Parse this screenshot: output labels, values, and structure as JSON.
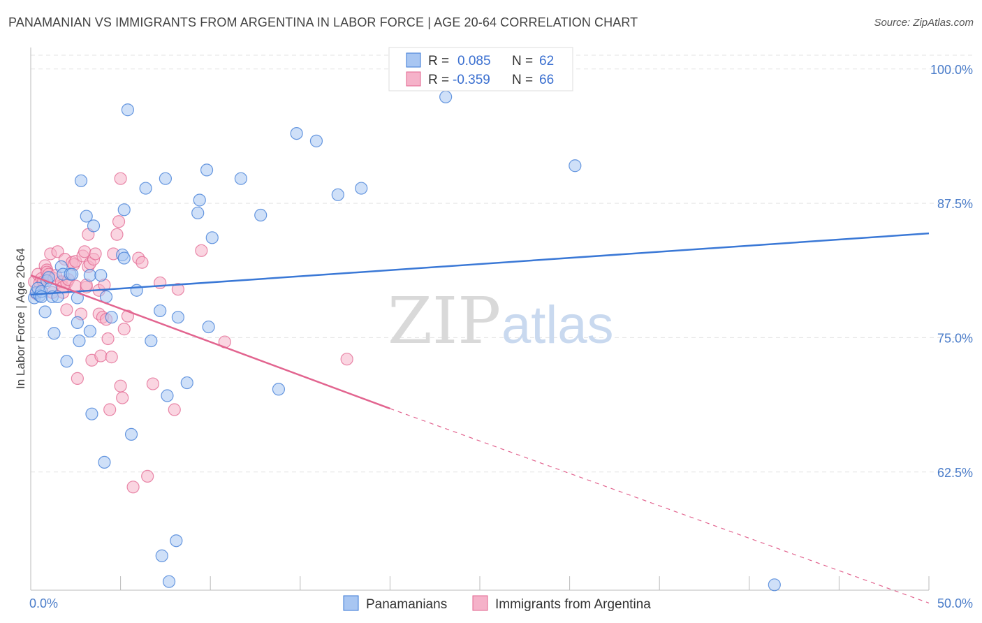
{
  "title": "PANAMANIAN VS IMMIGRANTS FROM ARGENTINA IN LABOR FORCE | AGE 20-64 CORRELATION CHART",
  "source": "Source: ZipAtlas.com",
  "watermark": {
    "zip": "ZIP",
    "atlas": "atlas"
  },
  "colors": {
    "blue": "#3a78d6",
    "blue_fill": "#a8c6f2",
    "pink": "#e2648f",
    "pink_fill": "#f5b2c9",
    "tick": "#4a7cc9"
  },
  "legend": {
    "rows": [
      {
        "r_label": "R =",
        "r_value": "0.085",
        "n_label": "N =",
        "n_value": "62"
      },
      {
        "r_label": "R =",
        "r_value": "-0.359",
        "n_label": "N =",
        "n_value": "66"
      }
    ]
  },
  "chart_data": {
    "type": "scatter",
    "title": "PANAMANIAN VS IMMIGRANTS FROM ARGENTINA IN LABOR FORCE | AGE 20-64 CORRELATION CHART",
    "xlabel": "",
    "ylabel": "In Labor Force | Age 20-64",
    "xlim": [
      0,
      50
    ],
    "ylim": [
      51.5,
      102
    ],
    "x_tick_labels": [
      "0.0%",
      "50.0%"
    ],
    "y_ticks": [
      62.5,
      75.0,
      87.5,
      100.0
    ],
    "y_tick_labels": [
      "62.5%",
      "75.0%",
      "87.5%",
      "100.0%"
    ],
    "grid": true,
    "legend_position": "top-center",
    "series": [
      {
        "name": "Panamanians",
        "color": "#3a78d6",
        "trend": {
          "x": [
            0,
            50
          ],
          "y": [
            79.0,
            84.7
          ]
        },
        "points": [
          [
            0.2,
            78.7
          ],
          [
            0.3,
            79.2
          ],
          [
            0.4,
            79.6
          ],
          [
            0.5,
            78.9
          ],
          [
            0.6,
            79.3
          ],
          [
            0.6,
            78.8
          ],
          [
            0.8,
            77.4
          ],
          [
            0.9,
            80.3
          ],
          [
            1.0,
            80.6
          ],
          [
            1.1,
            79.6
          ],
          [
            1.2,
            78.8
          ],
          [
            1.3,
            75.4
          ],
          [
            1.5,
            78.8
          ],
          [
            1.7,
            81.6
          ],
          [
            1.8,
            80.9
          ],
          [
            2.0,
            72.8
          ],
          [
            2.2,
            80.9
          ],
          [
            2.3,
            80.9
          ],
          [
            2.6,
            78.7
          ],
          [
            2.6,
            76.4
          ],
          [
            2.7,
            74.7
          ],
          [
            2.8,
            89.6
          ],
          [
            3.1,
            86.3
          ],
          [
            3.3,
            75.6
          ],
          [
            3.3,
            80.8
          ],
          [
            3.4,
            67.9
          ],
          [
            3.5,
            85.4
          ],
          [
            3.9,
            80.8
          ],
          [
            4.1,
            63.4
          ],
          [
            4.2,
            78.8
          ],
          [
            4.5,
            76.9
          ],
          [
            5.1,
            82.7
          ],
          [
            5.2,
            86.9
          ],
          [
            5.2,
            82.4
          ],
          [
            5.4,
            96.2
          ],
          [
            5.6,
            66.0
          ],
          [
            5.9,
            79.4
          ],
          [
            6.4,
            88.9
          ],
          [
            6.7,
            74.7
          ],
          [
            7.2,
            77.5
          ],
          [
            7.3,
            54.7
          ],
          [
            7.5,
            89.8
          ],
          [
            7.6,
            69.6
          ],
          [
            7.7,
            52.3
          ],
          [
            8.1,
            56.1
          ],
          [
            8.2,
            76.9
          ],
          [
            8.7,
            70.8
          ],
          [
            9.3,
            86.6
          ],
          [
            9.4,
            87.8
          ],
          [
            9.8,
            90.6
          ],
          [
            9.9,
            76.0
          ],
          [
            10.1,
            84.3
          ],
          [
            11.7,
            89.8
          ],
          [
            12.8,
            86.4
          ],
          [
            13.8,
            70.2
          ],
          [
            14.8,
            94.0
          ],
          [
            15.9,
            93.3
          ],
          [
            17.1,
            88.3
          ],
          [
            18.4,
            88.9
          ],
          [
            23.1,
            97.4
          ],
          [
            30.3,
            91.0
          ],
          [
            41.4,
            52.0
          ]
        ]
      },
      {
        "name": "Immigrants from Argentina",
        "color": "#e2648f",
        "trend": {
          "x": [
            0,
            20
          ],
          "y": [
            80.8,
            68.4
          ]
        },
        "trend_dashed": {
          "x": [
            20,
            50
          ],
          "y": [
            68.4,
            50.3
          ]
        },
        "points": [
          [
            0.2,
            80.2
          ],
          [
            0.3,
            79.1
          ],
          [
            0.4,
            80.9
          ],
          [
            0.5,
            80.1
          ],
          [
            0.6,
            80.5
          ],
          [
            0.7,
            80.2
          ],
          [
            0.8,
            81.7
          ],
          [
            0.9,
            81.3
          ],
          [
            0.9,
            81.1
          ],
          [
            1.0,
            80.9
          ],
          [
            1.1,
            82.8
          ],
          [
            1.2,
            79.2
          ],
          [
            1.3,
            80.5
          ],
          [
            1.4,
            80.8
          ],
          [
            1.5,
            83.0
          ],
          [
            1.7,
            80.2
          ],
          [
            1.8,
            79.2
          ],
          [
            1.8,
            79.7
          ],
          [
            1.9,
            82.3
          ],
          [
            2.0,
            80.1
          ],
          [
            2.0,
            77.6
          ],
          [
            2.1,
            80.4
          ],
          [
            2.3,
            82.0
          ],
          [
            2.4,
            81.8
          ],
          [
            2.5,
            79.8
          ],
          [
            2.5,
            82.1
          ],
          [
            2.6,
            71.2
          ],
          [
            2.8,
            77.2
          ],
          [
            2.9,
            82.6
          ],
          [
            3.0,
            83.0
          ],
          [
            3.1,
            79.7
          ],
          [
            3.1,
            79.9
          ],
          [
            3.2,
            81.6
          ],
          [
            3.2,
            84.6
          ],
          [
            3.3,
            81.9
          ],
          [
            3.4,
            72.9
          ],
          [
            3.5,
            82.3
          ],
          [
            3.6,
            82.8
          ],
          [
            3.8,
            79.4
          ],
          [
            3.8,
            77.2
          ],
          [
            3.9,
            73.3
          ],
          [
            4.0,
            76.9
          ],
          [
            4.1,
            79.9
          ],
          [
            4.2,
            76.7
          ],
          [
            4.3,
            74.9
          ],
          [
            4.4,
            68.3
          ],
          [
            4.5,
            73.2
          ],
          [
            4.6,
            82.8
          ],
          [
            4.8,
            84.6
          ],
          [
            4.9,
            85.8
          ],
          [
            5.0,
            89.8
          ],
          [
            5.0,
            70.5
          ],
          [
            5.1,
            69.4
          ],
          [
            5.2,
            75.8
          ],
          [
            5.4,
            77.0
          ],
          [
            5.7,
            61.1
          ],
          [
            6.0,
            82.4
          ],
          [
            6.2,
            82.0
          ],
          [
            6.5,
            62.1
          ],
          [
            6.8,
            70.7
          ],
          [
            7.2,
            80.1
          ],
          [
            8.0,
            68.3
          ],
          [
            8.2,
            79.5
          ],
          [
            9.5,
            83.1
          ],
          [
            10.8,
            74.6
          ],
          [
            17.6,
            73.0
          ]
        ]
      }
    ]
  }
}
